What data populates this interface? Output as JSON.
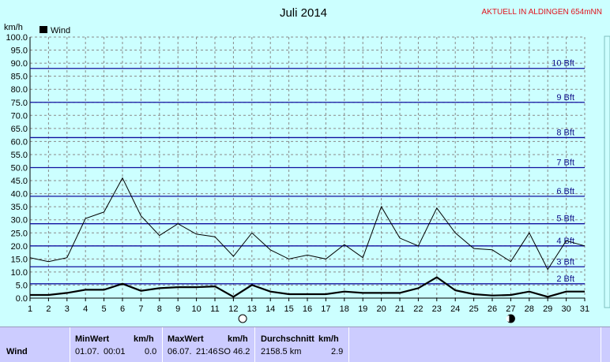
{
  "header": {
    "title": "Juli 2014",
    "alert": "AKTUELL IN ALDINGEN 654mNN"
  },
  "legend": {
    "label": "Wind"
  },
  "chart_data": {
    "type": "line",
    "title": "Juli 2014",
    "ylabel": "km/h",
    "xlabel": "",
    "ylim": [
      0,
      100
    ],
    "xlim": [
      1,
      31
    ],
    "x": [
      1,
      2,
      3,
      4,
      5,
      6,
      7,
      8,
      9,
      10,
      11,
      12,
      13,
      14,
      15,
      16,
      17,
      18,
      19,
      20,
      21,
      22,
      23,
      24,
      25,
      26,
      27,
      28,
      29,
      30,
      31
    ],
    "y_ticks": [
      "0.0",
      "5.0",
      "10.0",
      "15.0",
      "20.0",
      "25.0",
      "30.0",
      "35.0",
      "40.0",
      "45.0",
      "50.0",
      "55.0",
      "60.0",
      "65.0",
      "70.0",
      "75.0",
      "80.0",
      "85.0",
      "90.0",
      "95.0",
      "100.0"
    ],
    "x_ticks": [
      "1",
      "2",
      "3",
      "4",
      "5",
      "6",
      "7",
      "8",
      "9",
      "10",
      "11",
      "12",
      "13",
      "14",
      "15",
      "16",
      "17",
      "18",
      "19",
      "20",
      "21",
      "22",
      "23",
      "24",
      "25",
      "26",
      "27",
      "28",
      "29",
      "30",
      "31"
    ],
    "series": [
      {
        "name": "Wind",
        "color": "#000000",
        "values": [
          15.5,
          14,
          15.5,
          30.5,
          33,
          46,
          31.5,
          24,
          28.5,
          24.5,
          23.5,
          16,
          25,
          18.5,
          15,
          16.5,
          15,
          20.5,
          15.5,
          35,
          23,
          20,
          34.5,
          25,
          19,
          18.5,
          14,
          25,
          11,
          22,
          20
        ]
      },
      {
        "color": "#000000",
        "values": [
          1.2,
          1.2,
          2,
          3.2,
          3.2,
          5.5,
          2.8,
          3.8,
          4.2,
          4.2,
          4.5,
          0.5,
          5,
          2.5,
          1.5,
          1.5,
          1.5,
          2.5,
          2,
          2,
          2,
          3.8,
          8,
          3,
          1.5,
          1,
          1.2,
          2.5,
          0.5,
          2.5,
          2.5
        ]
      }
    ],
    "reference_lines": [
      {
        "label": "2 Bft",
        "value": 5.5
      },
      {
        "label": "3 Bft",
        "value": 12
      },
      {
        "label": "4 Bft",
        "value": 20
      },
      {
        "label": "5 Bft",
        "value": 28.5
      },
      {
        "label": "6 Bft",
        "value": 39
      },
      {
        "label": "7 Bft",
        "value": 50
      },
      {
        "label": "8 Bft",
        "value": 61.5
      },
      {
        "label": "9 Bft",
        "value": 75
      },
      {
        "label": "10 Bft",
        "value": 88
      }
    ],
    "reference_color": "#1010a0",
    "grid": true,
    "legend_position": "top-left",
    "moon_phases": [
      {
        "day": 12.5,
        "phase": "full"
      },
      {
        "day": 27,
        "phase": "new"
      }
    ]
  },
  "stats": {
    "row_label": "Wind",
    "min": {
      "title": "MinWert",
      "unit": "km/h",
      "date": "01.07.",
      "time": "00:01",
      "value": "0.0"
    },
    "max": {
      "title": "MaxWert",
      "unit": "km/h",
      "date": "06.07.",
      "time": "21:46",
      "dir": "SO",
      "value": "46.2"
    },
    "avg": {
      "title": "Durchschnitt",
      "unit": "km/h",
      "distance": "2158.5 km",
      "value": "2.9"
    }
  }
}
